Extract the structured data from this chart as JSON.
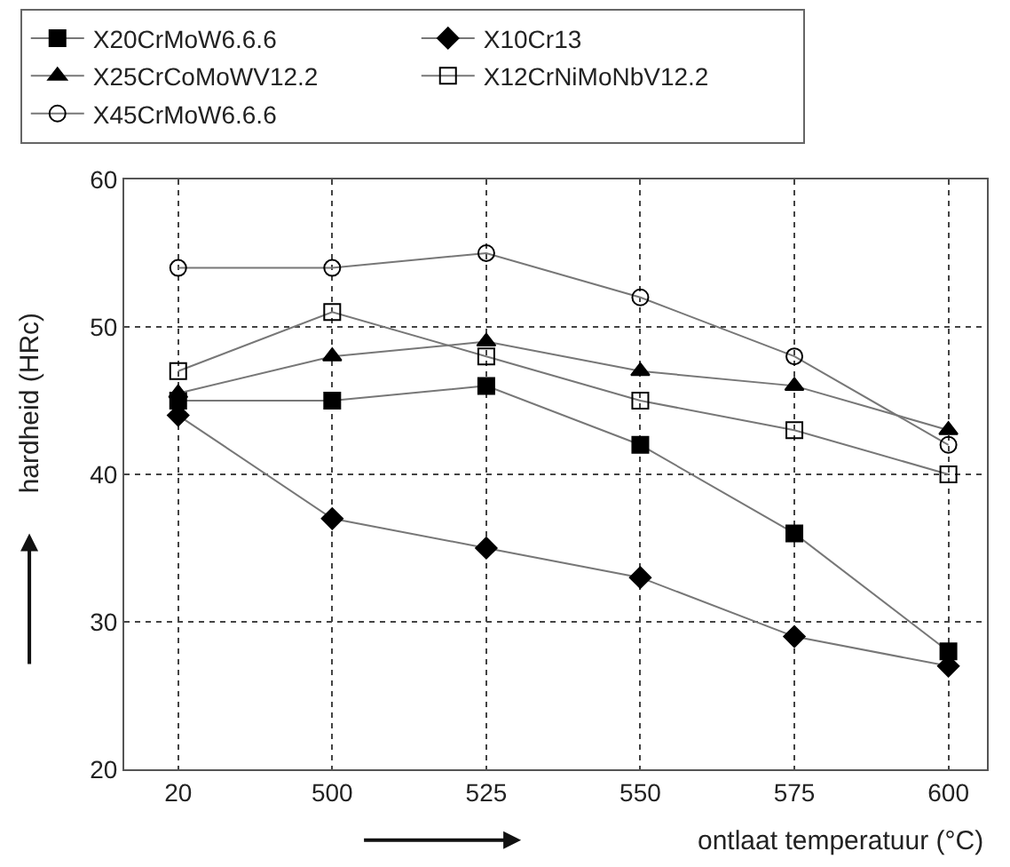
{
  "chart_data": {
    "type": "line",
    "xlabel": "ontlaat temperatuur (°C)",
    "ylabel": "hardheid (HRc)",
    "categories": [
      "20",
      "500",
      "525",
      "550",
      "575",
      "600"
    ],
    "ylim": [
      20,
      60
    ],
    "yticks": [
      20,
      30,
      40,
      50,
      60
    ],
    "grid": true,
    "legend": "top",
    "line_style": "solid",
    "series": [
      {
        "name": "X20CrMoW6.6.6",
        "color": "#000000",
        "marker": "square",
        "values": [
          45,
          45,
          46,
          42,
          36,
          28
        ]
      },
      {
        "name": "X10Cr13",
        "color": "#000000",
        "marker": "diamond",
        "values": [
          44,
          37,
          35,
          33,
          29,
          27
        ]
      },
      {
        "name": "X25CrCoMoWV12.2",
        "color": "#000000",
        "marker": "triangle",
        "values": [
          45.5,
          48,
          49,
          47,
          46,
          43
        ]
      },
      {
        "name": "X12CrNiMoNbV12.2",
        "color": "#000000",
        "marker": "square-open",
        "values": [
          47,
          51,
          48,
          45,
          43,
          40
        ]
      },
      {
        "name": "X45CrMoW6.6.6",
        "color": "#000000",
        "marker": "circle-open",
        "values": [
          54,
          54,
          55,
          52,
          48,
          42
        ]
      }
    ]
  }
}
